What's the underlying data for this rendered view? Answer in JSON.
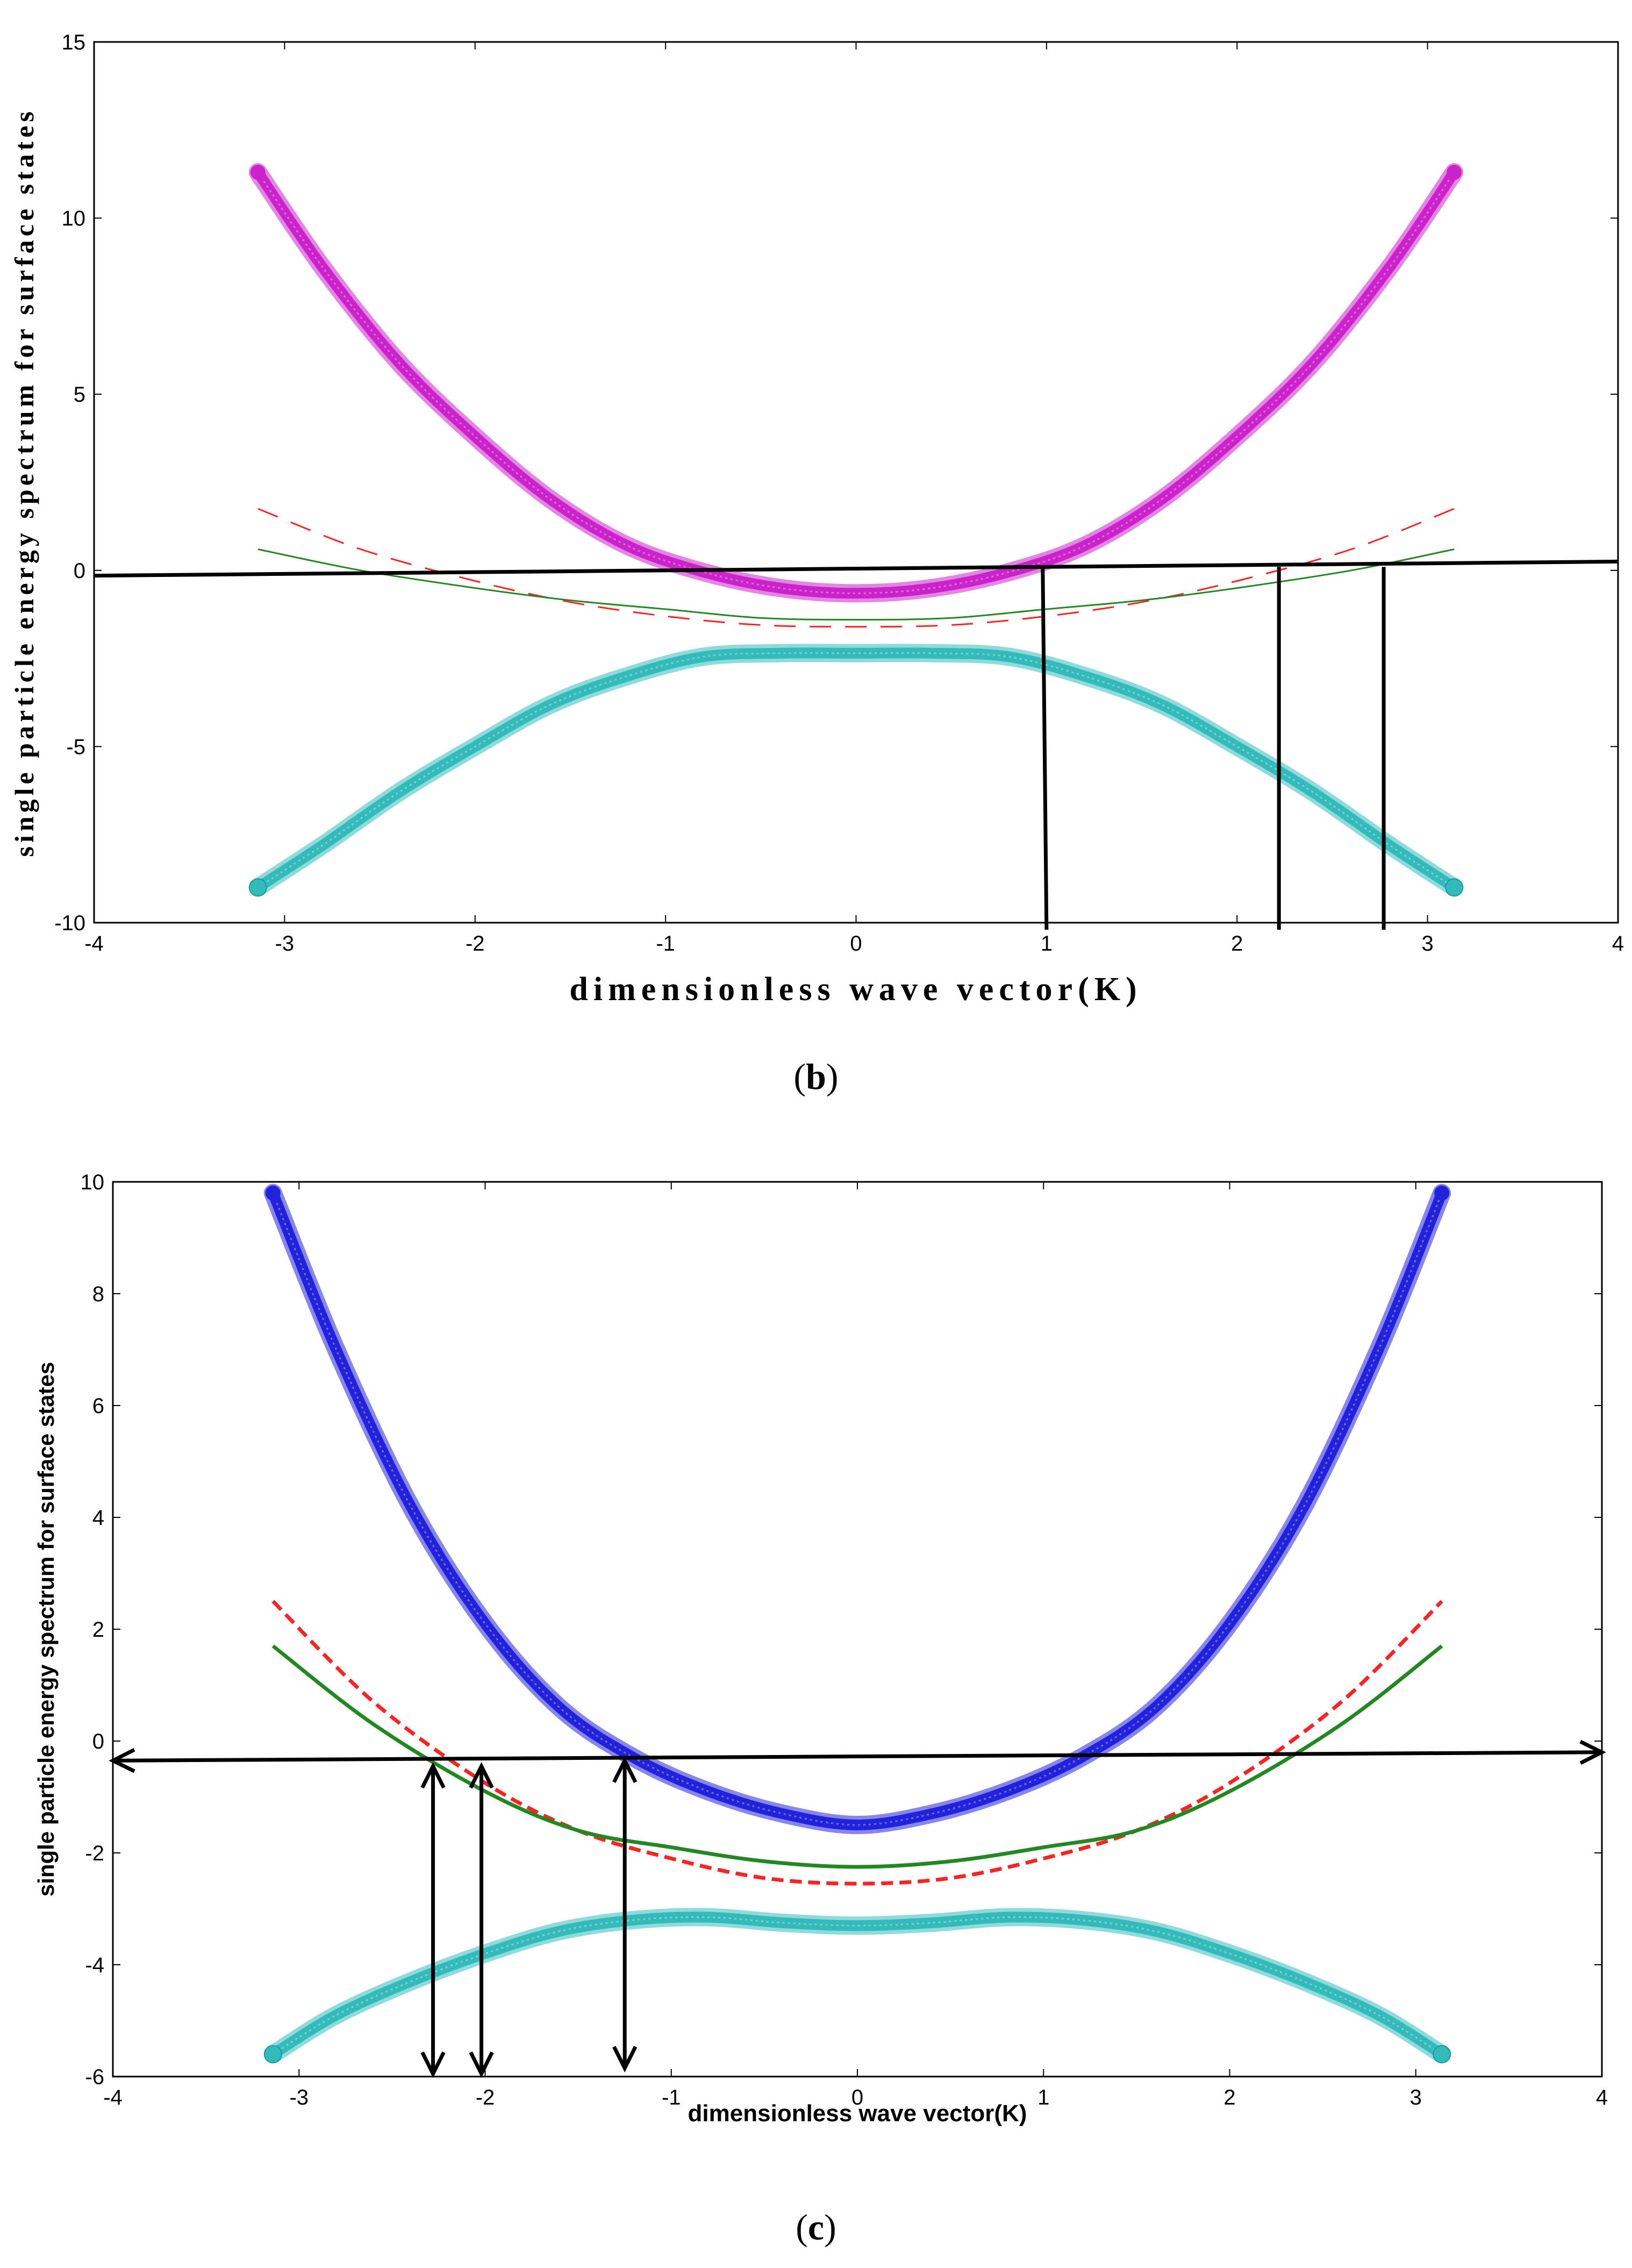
{
  "chart_data": [
    {
      "panel": "b",
      "type": "line",
      "caption": "b",
      "caption_open": "(",
      "caption_close": ")",
      "xlabel": "dimensionless wave vector(K)",
      "ylabel": "single particle energy spectrum for surface states",
      "xlim": [
        -4,
        4
      ],
      "ylim": [
        -10,
        15
      ],
      "xticks": [
        -4,
        -3,
        -2,
        -1,
        0,
        1,
        2,
        3,
        4
      ],
      "yticks": [
        -10,
        -5,
        0,
        5,
        10,
        15
      ],
      "grid": false,
      "series": [
        {
          "name": "upper band",
          "style": "thick-star",
          "color": "#cc22cc",
          "x": [
            -3.14,
            -2.8,
            -2.4,
            -2.0,
            -1.6,
            -1.2,
            -0.8,
            -0.4,
            0,
            0.4,
            0.8,
            1.2,
            1.6,
            2.0,
            2.4,
            2.8,
            3.14
          ],
          "y": [
            11.3,
            8.6,
            5.9,
            3.8,
            2.0,
            0.7,
            -0.05,
            -0.5,
            -0.65,
            -0.5,
            -0.05,
            0.7,
            2.0,
            3.8,
            5.9,
            8.6,
            11.3
          ]
        },
        {
          "name": "lower band",
          "style": "thick-circle",
          "color": "#33bbbb",
          "x": [
            -3.14,
            -2.8,
            -2.4,
            -2.0,
            -1.6,
            -1.2,
            -0.8,
            -0.4,
            0,
            0.4,
            0.8,
            1.2,
            1.6,
            2.0,
            2.4,
            2.8,
            3.14
          ],
          "y": [
            -9.0,
            -7.8,
            -6.3,
            -5.0,
            -3.8,
            -3.0,
            -2.45,
            -2.35,
            -2.35,
            -2.35,
            -2.45,
            -3.0,
            -3.8,
            -5.0,
            -6.3,
            -7.8,
            -9.0
          ]
        },
        {
          "name": "red dashed",
          "style": "dashed",
          "color": "#ff2222",
          "x": [
            -3.14,
            -2.6,
            -2.0,
            -1.5,
            -1.0,
            -0.5,
            0,
            0.5,
            1.0,
            1.5,
            2.0,
            2.6,
            3.14
          ],
          "y": [
            1.75,
            0.6,
            -0.3,
            -0.9,
            -1.3,
            -1.55,
            -1.6,
            -1.55,
            -1.3,
            -0.9,
            -0.3,
            0.6,
            1.75
          ]
        },
        {
          "name": "green solid",
          "style": "solid-thin",
          "color": "#228822",
          "x": [
            -3.14,
            -2.6,
            -2.0,
            -1.5,
            -1.0,
            -0.5,
            0,
            0.5,
            1.0,
            1.5,
            2.0,
            2.6,
            3.14
          ],
          "y": [
            0.6,
            0.0,
            -0.5,
            -0.85,
            -1.1,
            -1.35,
            -1.4,
            -1.35,
            -1.1,
            -0.85,
            -0.5,
            0.0,
            0.6
          ]
        }
      ],
      "annotations": {
        "horizontal_line": {
          "x": [
            -4,
            4
          ],
          "y": [
            -0.15,
            0.25
          ]
        },
        "vertical_lines": [
          {
            "x": [
              0.98,
              1.0
            ],
            "y": [
              0.1,
              -10.2
            ]
          },
          {
            "x": [
              2.22,
              2.22
            ],
            "y": [
              0.1,
              -10.2
            ]
          },
          {
            "x": [
              2.77,
              2.77
            ],
            "y": [
              0.1,
              -10.2
            ]
          }
        ]
      }
    },
    {
      "panel": "c",
      "type": "line",
      "caption": "c",
      "caption_open": "(",
      "caption_close": ")",
      "xlabel": "dimensionless wave vector(K)",
      "ylabel": "single particle energy spectrum for surface states",
      "xlim": [
        -4,
        4
      ],
      "ylim": [
        -6,
        10
      ],
      "xticks": [
        -4,
        -3,
        -2,
        -1,
        0,
        1,
        2,
        3,
        4
      ],
      "yticks": [
        -6,
        -4,
        -2,
        0,
        2,
        4,
        6,
        8,
        10
      ],
      "grid": false,
      "series": [
        {
          "name": "upper band",
          "style": "thick-star",
          "color": "#2222dd",
          "x": [
            -3.14,
            -2.8,
            -2.4,
            -2.0,
            -1.6,
            -1.2,
            -0.8,
            -0.4,
            0,
            0.4,
            0.8,
            1.2,
            1.6,
            2.0,
            2.4,
            2.8,
            3.14
          ],
          "y": [
            9.8,
            7.0,
            4.2,
            2.1,
            0.6,
            -0.3,
            -0.9,
            -1.3,
            -1.5,
            -1.3,
            -0.9,
            -0.3,
            0.6,
            2.1,
            4.2,
            7.0,
            9.8
          ]
        },
        {
          "name": "lower band",
          "style": "thick-circle",
          "color": "#33bbbb",
          "x": [
            -3.14,
            -2.8,
            -2.4,
            -2.0,
            -1.6,
            -1.2,
            -0.8,
            -0.4,
            0,
            0.4,
            0.8,
            1.2,
            1.6,
            2.0,
            2.4,
            2.8,
            3.14
          ],
          "y": [
            -5.6,
            -4.9,
            -4.3,
            -3.8,
            -3.4,
            -3.2,
            -3.15,
            -3.25,
            -3.3,
            -3.25,
            -3.15,
            -3.2,
            -3.4,
            -3.8,
            -4.3,
            -4.9,
            -5.6
          ]
        },
        {
          "name": "red dashed",
          "style": "dashed",
          "color": "#ff2222",
          "x": [
            -3.14,
            -2.6,
            -2.0,
            -1.5,
            -1.0,
            -0.5,
            0,
            0.5,
            1.0,
            1.5,
            2.0,
            2.6,
            3.14
          ],
          "y": [
            2.5,
            0.7,
            -0.75,
            -1.6,
            -2.1,
            -2.45,
            -2.55,
            -2.45,
            -2.1,
            -1.6,
            -0.75,
            0.7,
            2.5
          ]
        },
        {
          "name": "green solid",
          "style": "solid",
          "color": "#228822",
          "x": [
            -3.14,
            -2.6,
            -2.0,
            -1.5,
            -1.0,
            -0.5,
            0,
            0.5,
            1.0,
            1.5,
            2.0,
            2.6,
            3.14
          ],
          "y": [
            1.7,
            0.3,
            -0.9,
            -1.6,
            -1.9,
            -2.15,
            -2.25,
            -2.15,
            -1.9,
            -1.6,
            -0.9,
            0.3,
            1.7
          ]
        }
      ],
      "annotations": {
        "horizontal_arrow": {
          "x": [
            -4,
            4
          ],
          "y": [
            -0.35,
            -0.2
          ]
        },
        "vertical_arrows": [
          {
            "x": -2.28,
            "y": [
              -0.45,
              -5.95
            ]
          },
          {
            "x": -2.02,
            "y": [
              -0.45,
              -5.95
            ]
          },
          {
            "x": -1.25,
            "y": [
              -0.35,
              -5.85
            ]
          }
        ]
      }
    }
  ]
}
